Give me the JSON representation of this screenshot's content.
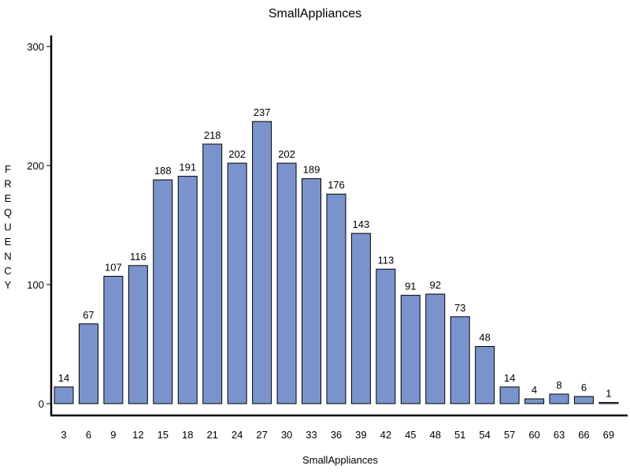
{
  "chart_data": {
    "type": "bar",
    "title": "SmallAppliances",
    "xlabel": "SmallAppliances",
    "ylabel": "FREQUENCY",
    "categories": [
      "3",
      "6",
      "9",
      "12",
      "15",
      "18",
      "21",
      "24",
      "27",
      "30",
      "33",
      "36",
      "39",
      "42",
      "45",
      "48",
      "51",
      "54",
      "57",
      "60",
      "63",
      "66",
      "69"
    ],
    "values": [
      14,
      67,
      107,
      116,
      188,
      191,
      218,
      202,
      237,
      202,
      189,
      176,
      143,
      113,
      91,
      92,
      73,
      48,
      14,
      4,
      8,
      6,
      1
    ],
    "data_labels": [
      "14",
      "67",
      "107",
      "116",
      "188",
      "191",
      "218",
      "202",
      "237",
      "202",
      "189",
      "176",
      "143",
      "113",
      "91",
      "92",
      "73",
      "48",
      "14",
      "4",
      "8",
      "6",
      "1"
    ],
    "ylim": [
      0,
      300
    ],
    "yticks": [
      "0",
      "100",
      "200",
      "300"
    ],
    "bar_color": "#7b93cc",
    "bar_edge_color": "#000000",
    "grid": false,
    "legend": false
  }
}
